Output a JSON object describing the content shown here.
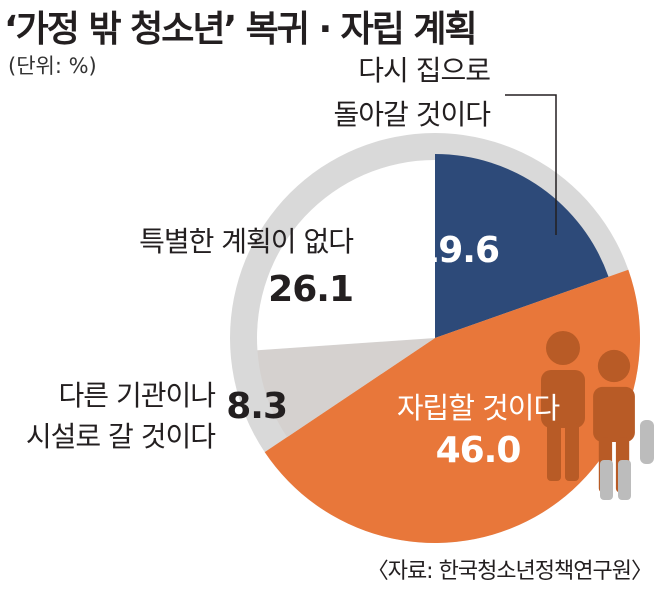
{
  "title": "‘가정 밖 청소년’ 복귀 · 자립 계획",
  "unit": "(단위: %)",
  "source": "〈자료: 한국청소년정책연구원〉",
  "colors": {
    "return_home": "#2d4a79",
    "independence": "#e8773a",
    "other_facility": "#d5d1cf",
    "no_plan": "#ffffff",
    "outer_ring": "#d9d9d9",
    "icon": "#b85b26"
  },
  "chart_data": {
    "type": "pie",
    "title": "‘가정 밖 청소년’ 복귀 · 자립 계획",
    "unit": "(단위: %)",
    "slices": [
      {
        "label_lines": [
          "다시 집으로",
          "돌아갈 것이다"
        ],
        "value": 19.6,
        "value_label": "19.6",
        "color": "#2d4a79"
      },
      {
        "label_lines": [
          "자립할 것이다"
        ],
        "value": 46.0,
        "value_label": "46.0",
        "color": "#e8773a"
      },
      {
        "label_lines": [
          "다른 기관이나",
          "시설로 갈 것이다"
        ],
        "value": 8.3,
        "value_label": "8.3",
        "color": "#d5d1cf"
      },
      {
        "label_lines": [
          "특별한 계획이 없다"
        ],
        "value": 26.1,
        "value_label": "26.1",
        "color": "#ffffff"
      }
    ]
  }
}
